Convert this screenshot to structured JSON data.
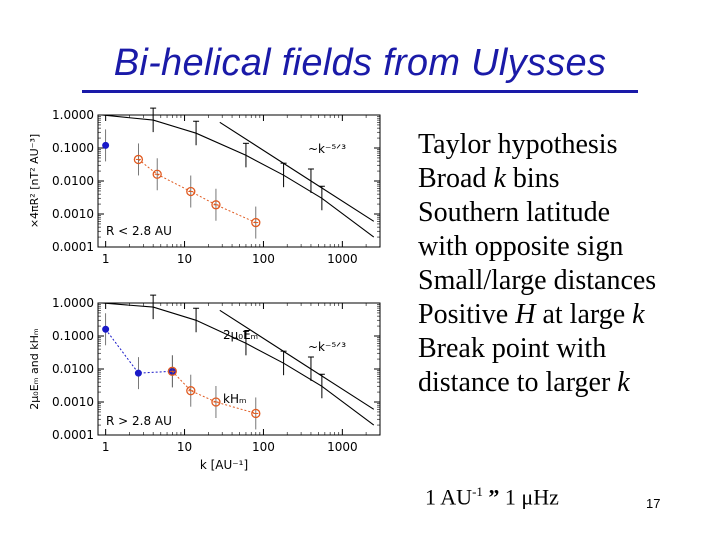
{
  "slide": {
    "title": "Bi-helical fields from Ulysses",
    "colors": {
      "title": "#1a1aa8",
      "blue_points": "#1a1ac8",
      "red_points": "#e05a20"
    },
    "bullets": [
      {
        "pre": "Taylor hypothesis",
        "em": "",
        "post": ""
      },
      {
        "pre": "Broad ",
        "em": "k",
        "post": " bins"
      },
      {
        "pre": "Southern latitude",
        "em": "",
        "post": "",
        "line2": "with opposite sign"
      },
      {
        "pre": "Small/large distances",
        "em": "",
        "post": ""
      },
      {
        "pre": "Positive ",
        "em": "H",
        "post": " at large ",
        "em2": "k"
      },
      {
        "pre": "Break point with",
        "em": "",
        "post": "",
        "line2a": "distance to larger ",
        "line2em": "k"
      }
    ],
    "note": {
      "a": "1 AU",
      "sup": "-1",
      "b": " ",
      "c": "1 ",
      "d": "Hz",
      "arrow": "”",
      "mu": "μ"
    },
    "page": "17"
  },
  "chart_data": [
    {
      "type": "scatter",
      "xscale": "log",
      "yscale": "log",
      "xlim": [
        0.8,
        3000
      ],
      "ylim": [
        0.0001,
        1.0
      ],
      "ylabel": "×4πR² [nT² AU⁻³]",
      "xticks": [
        "1",
        "10",
        "100",
        "1000"
      ],
      "yticks": [
        "1.0000",
        "0.1000",
        "0.0100",
        "0.0010",
        "0.0001"
      ],
      "annotations": [
        "~k⁻⁵ᐟ³",
        "R < 2.8 AU"
      ],
      "series": [
        {
          "marker": "filled",
          "points": [
            [
              1,
              0.12
            ]
          ]
        },
        {
          "marker": "open",
          "points": [
            [
              2.6,
              0.045
            ],
            [
              4.5,
              0.016
            ],
            [
              12,
              0.0048
            ],
            [
              25,
              0.0019
            ],
            [
              80,
              0.00055
            ]
          ]
        },
        {
          "style": "solid",
          "points": [
            [
              0.9,
              1.0
            ],
            [
              4,
              0.7
            ],
            [
              14,
              0.28
            ],
            [
              60,
              0.06
            ],
            [
              180,
              0.015
            ],
            [
              550,
              0.003
            ],
            [
              2500,
              0.0002
            ]
          ]
        },
        {
          "style": "solid",
          "points": [
            [
              28,
              0.6
            ],
            [
              400,
              0.01
            ],
            [
              2500,
              0.0006
            ]
          ]
        }
      ]
    },
    {
      "type": "scatter",
      "xscale": "log",
      "yscale": "log",
      "xlim": [
        0.8,
        3000
      ],
      "ylim": [
        0.0001,
        1.0
      ],
      "xlabel": "k [AU⁻¹]",
      "ylabel": "2μ₀Eₘ and kHₘ",
      "xticks": [
        "1",
        "10",
        "100",
        "1000"
      ],
      "yticks": [
        "1.0000",
        "0.1000",
        "0.0100",
        "0.0010",
        "0.0001"
      ],
      "annotations": [
        "2μ₀Eₘ",
        "~k⁻⁵ᐟ³",
        "kHₘ",
        "R > 2.8 AU"
      ],
      "series": [
        {
          "marker": "filled",
          "points": [
            [
              1,
              0.16
            ],
            [
              2.6,
              0.0075
            ],
            [
              7,
              0.0085
            ]
          ]
        },
        {
          "marker": "open",
          "points": [
            [
              7,
              0.0085
            ],
            [
              12,
              0.0022
            ],
            [
              25,
              0.001
            ],
            [
              80,
              0.00045
            ]
          ]
        },
        {
          "style": "solid",
          "points": [
            [
              0.9,
              1.0
            ],
            [
              4,
              0.75
            ],
            [
              14,
              0.3
            ],
            [
              60,
              0.06
            ],
            [
              180,
              0.015
            ],
            [
              550,
              0.003
            ],
            [
              2500,
              0.0002
            ]
          ]
        },
        {
          "style": "solid",
          "points": [
            [
              28,
              0.6
            ],
            [
              400,
              0.01
            ],
            [
              2500,
              0.0006
            ]
          ]
        }
      ]
    }
  ]
}
